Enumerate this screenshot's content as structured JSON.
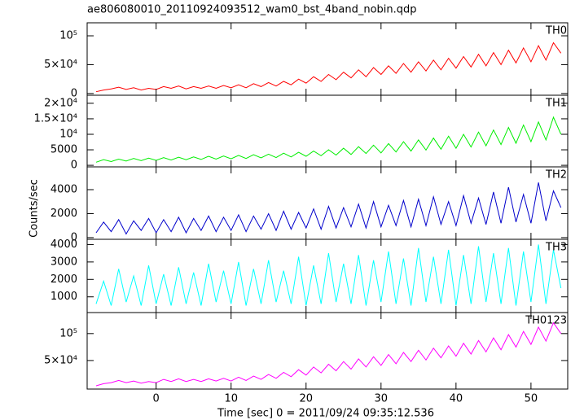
{
  "chart_data": [
    {
      "type": "line",
      "title": "ae806080010_20110924093512_wam0_bst_4band_nobin.qdp",
      "x": [
        -8,
        -7,
        -6,
        -5,
        -4,
        -3,
        -2,
        -1,
        0,
        1,
        2,
        3,
        4,
        5,
        6,
        7,
        8,
        9,
        10,
        11,
        12,
        13,
        14,
        15,
        16,
        17,
        18,
        19,
        20,
        21,
        22,
        23,
        24,
        25,
        26,
        27,
        28,
        29,
        30,
        31,
        32,
        33,
        34,
        35,
        36,
        37,
        38,
        39,
        40,
        41,
        42,
        43,
        44,
        45,
        46,
        47,
        48,
        49,
        50,
        51,
        52,
        53,
        54
      ],
      "series": [
        {
          "name": "TH0",
          "color": "#ff0000",
          "values": [
            3000,
            6000,
            8000,
            11000,
            7000,
            10000,
            6000,
            9000,
            7000,
            12000,
            9000,
            13000,
            8000,
            12000,
            9000,
            13000,
            9000,
            14000,
            10000,
            15000,
            10000,
            17000,
            12000,
            19000,
            13000,
            21000,
            15000,
            25000,
            18000,
            29000,
            21000,
            33000,
            24000,
            37000,
            27000,
            41000,
            29000,
            45000,
            33000,
            48000,
            35000,
            52000,
            37000,
            55000,
            39000,
            58000,
            41000,
            61000,
            44000,
            64000,
            46000,
            68000,
            48000,
            71000,
            50000,
            75000,
            53000,
            79000,
            55000,
            83000,
            58000,
            88000,
            70000
          ]
        }
      ],
      "xlim": [
        -9.2,
        54.9
      ],
      "ylim": [
        -3000,
        122600
      ],
      "yticks": [
        0,
        {
          "value": 50000,
          "label": "5×10⁴"
        },
        {
          "value": 100000,
          "label": "10⁵"
        }
      ]
    },
    {
      "type": "line",
      "x": [
        -8,
        -7,
        -6,
        -5,
        -4,
        -3,
        -2,
        -1,
        0,
        1,
        2,
        3,
        4,
        5,
        6,
        7,
        8,
        9,
        10,
        11,
        12,
        13,
        14,
        15,
        16,
        17,
        18,
        19,
        20,
        21,
        22,
        23,
        24,
        25,
        26,
        27,
        28,
        29,
        30,
        31,
        32,
        33,
        34,
        35,
        36,
        37,
        38,
        39,
        40,
        41,
        42,
        43,
        44,
        45,
        46,
        47,
        48,
        49,
        50,
        51,
        52,
        53,
        54
      ],
      "series": [
        {
          "name": "TH1",
          "color": "#00ee00",
          "values": [
            1000,
            1800,
            1200,
            2000,
            1400,
            2200,
            1500,
            2300,
            1600,
            2500,
            1700,
            2600,
            1800,
            2700,
            1900,
            2900,
            2000,
            3000,
            2100,
            3200,
            2200,
            3400,
            2400,
            3600,
            2500,
            3900,
            2700,
            4200,
            2900,
            4600,
            3100,
            5000,
            3300,
            5500,
            3500,
            6000,
            3800,
            6500,
            4000,
            7000,
            4300,
            7600,
            4600,
            8200,
            4900,
            8800,
            5200,
            9400,
            5500,
            10000,
            5900,
            10700,
            6300,
            11400,
            6700,
            12200,
            7100,
            13000,
            7600,
            14000,
            8200,
            15500,
            10000
          ]
        }
      ],
      "xlim": [
        -9.2,
        54.9
      ],
      "ylim": [
        -500,
        22600
      ],
      "yticks": [
        0,
        5000,
        {
          "value": 10000,
          "label": "10⁴"
        },
        {
          "value": 15000,
          "label": "1.5×10⁴"
        },
        {
          "value": 20000,
          "label": "2×10⁴"
        }
      ]
    },
    {
      "type": "line",
      "ylabel": "Counts/sec",
      "x": [
        -8,
        -7,
        -6,
        -5,
        -4,
        -3,
        -2,
        -1,
        0,
        1,
        2,
        3,
        4,
        5,
        6,
        7,
        8,
        9,
        10,
        11,
        12,
        13,
        14,
        15,
        16,
        17,
        18,
        19,
        20,
        21,
        22,
        23,
        24,
        25,
        26,
        27,
        28,
        29,
        30,
        31,
        32,
        33,
        34,
        35,
        36,
        37,
        38,
        39,
        40,
        41,
        42,
        43,
        44,
        45,
        46,
        47,
        48,
        49,
        50,
        51,
        52,
        53,
        54
      ],
      "series": [
        {
          "name": "TH2",
          "color": "#0000cc",
          "values": [
            400,
            1300,
            500,
            1500,
            300,
            1400,
            600,
            1600,
            400,
            1500,
            500,
            1700,
            400,
            1600,
            600,
            1800,
            500,
            1700,
            600,
            1900,
            500,
            1800,
            700,
            2000,
            600,
            2200,
            700,
            2100,
            800,
            2400,
            700,
            2600,
            800,
            2500,
            900,
            2800,
            800,
            3000,
            900,
            2700,
            1000,
            3100,
            900,
            3200,
            1000,
            3400,
            1100,
            3000,
            1000,
            3500,
            1200,
            3300,
            1100,
            3800,
            1200,
            4200,
            1300,
            3600,
            1200,
            4600,
            1400,
            3900,
            2500
          ]
        }
      ],
      "xlim": [
        -9.2,
        54.9
      ],
      "ylim": [
        -140,
        5900
      ],
      "yticks": [
        0,
        2000,
        4000
      ]
    },
    {
      "type": "line",
      "x": [
        -8,
        -7,
        -6,
        -5,
        -4,
        -3,
        -2,
        -1,
        0,
        1,
        2,
        3,
        4,
        5,
        6,
        7,
        8,
        9,
        10,
        11,
        12,
        13,
        14,
        15,
        16,
        17,
        18,
        19,
        20,
        21,
        22,
        23,
        24,
        25,
        26,
        27,
        28,
        29,
        30,
        31,
        32,
        33,
        34,
        35,
        36,
        37,
        38,
        39,
        40,
        41,
        42,
        43,
        44,
        45,
        46,
        47,
        48,
        49,
        50,
        51,
        52,
        53,
        54
      ],
      "series": [
        {
          "name": "TH3",
          "color": "#00ffff",
          "values": [
            600,
            1900,
            500,
            2600,
            700,
            2200,
            500,
            2800,
            600,
            2300,
            500,
            2700,
            600,
            2400,
            500,
            2900,
            700,
            2500,
            600,
            3000,
            500,
            2600,
            600,
            3100,
            700,
            2500,
            600,
            3300,
            500,
            2800,
            600,
            3500,
            700,
            2900,
            600,
            3400,
            500,
            3100,
            700,
            3600,
            600,
            3200,
            500,
            3800,
            700,
            3300,
            600,
            3700,
            500,
            3400,
            600,
            3900,
            700,
            3500,
            600,
            3800,
            500,
            3600,
            700,
            4000,
            600,
            3700,
            1500
          ]
        }
      ],
      "xlim": [
        -9.2,
        54.9
      ],
      "ylim": [
        100,
        4300
      ],
      "yticks": [
        1000,
        2000,
        3000,
        4000
      ]
    },
    {
      "type": "line",
      "xlabel": "Time [sec] 0 = 2011/09/24 09:35:12.536",
      "x": [
        -8,
        -7,
        -6,
        -5,
        -4,
        -3,
        -2,
        -1,
        0,
        1,
        2,
        3,
        4,
        5,
        6,
        7,
        8,
        9,
        10,
        11,
        12,
        13,
        14,
        15,
        16,
        17,
        18,
        19,
        20,
        21,
        22,
        23,
        24,
        25,
        26,
        27,
        28,
        29,
        30,
        31,
        32,
        33,
        34,
        35,
        36,
        37,
        38,
        39,
        40,
        41,
        42,
        43,
        44,
        45,
        46,
        47,
        48,
        49,
        50,
        51,
        52,
        53,
        54
      ],
      "series": [
        {
          "name": "TH0123",
          "color": "#ff00ff",
          "values": [
            3000,
            7000,
            9000,
            13000,
            9000,
            12000,
            8000,
            11000,
            9000,
            15000,
            11000,
            16000,
            11000,
            15000,
            11000,
            16000,
            12000,
            17000,
            12000,
            19000,
            13000,
            21000,
            15000,
            24000,
            17000,
            28000,
            20000,
            33000,
            23000,
            38000,
            27000,
            43000,
            31000,
            48000,
            34000,
            53000,
            38000,
            57000,
            41000,
            61000,
            44000,
            65000,
            48000,
            69000,
            51000,
            73000,
            55000,
            77000,
            58000,
            82000,
            62000,
            87000,
            66000,
            92000,
            70000,
            98000,
            75000,
            104000,
            80000,
            112000,
            86000,
            120000,
            100000
          ]
        }
      ],
      "xlim": [
        -9.2,
        54.9
      ],
      "ylim": [
        -3000,
        139000
      ],
      "yticks": [
        {
          "value": 50000,
          "label": "5×10⁴"
        },
        {
          "value": 100000,
          "label": "10⁵"
        }
      ],
      "xticks": [
        0,
        10,
        20,
        30,
        40,
        50
      ]
    }
  ]
}
